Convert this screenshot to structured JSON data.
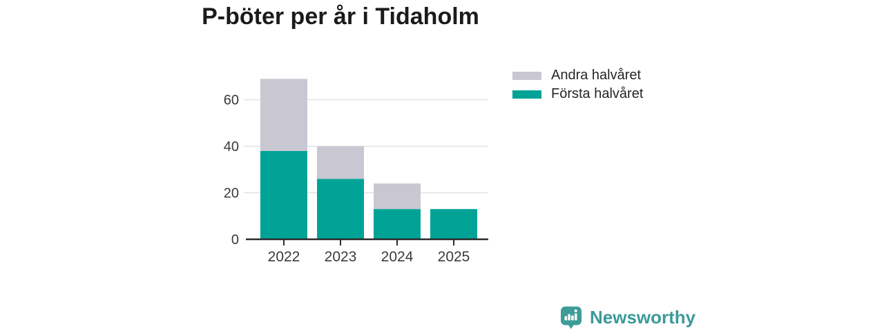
{
  "title": "P-böter per år i Tidaholm",
  "chart_data": {
    "type": "bar",
    "stacked": true,
    "title": "P-böter per år i Tidaholm",
    "xlabel": "",
    "ylabel": "",
    "categories": [
      "2022",
      "2023",
      "2024",
      "2025"
    ],
    "series": [
      {
        "name": "Första halvåret",
        "color": "#00a396",
        "values": [
          38,
          26,
          13,
          13
        ]
      },
      {
        "name": "Andra halvåret",
        "color": "#c9c7d2",
        "values": [
          31,
          14,
          11,
          0
        ]
      }
    ],
    "totals": [
      69,
      40,
      24,
      13
    ],
    "yticks": [
      0,
      20,
      40,
      60
    ],
    "ylim": [
      0,
      70
    ],
    "grid": "horizontal",
    "legend_position": "top-right",
    "legend": [
      {
        "label": "Andra halvåret",
        "color": "#c9c7d2"
      },
      {
        "label": "Första halvåret",
        "color": "#00a396"
      }
    ]
  },
  "branding": {
    "wordmark": "Newsworthy",
    "color": "#3b9a99",
    "icon": "newsworthy-chart-bubble-icon"
  },
  "colors": {
    "background": "#ffffff",
    "axis": "#2b2b2b",
    "grid": "#e2e0e7",
    "tick_text": "#3a3a3a",
    "title_text": "#1b1b1b"
  }
}
